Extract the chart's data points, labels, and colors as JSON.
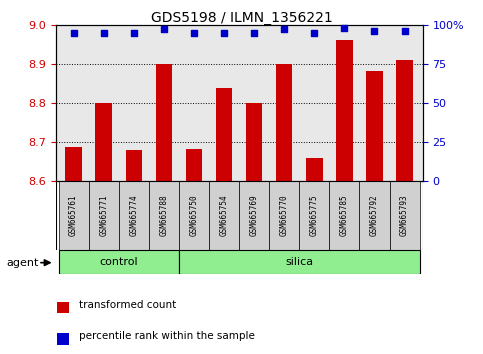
{
  "title": "GDS5198 / ILMN_1356221",
  "samples": [
    "GSM665761",
    "GSM665771",
    "GSM665774",
    "GSM665788",
    "GSM665750",
    "GSM665754",
    "GSM665769",
    "GSM665770",
    "GSM665775",
    "GSM665785",
    "GSM665792",
    "GSM665793"
  ],
  "red_values": [
    8.685,
    8.8,
    8.678,
    8.9,
    8.682,
    8.838,
    8.8,
    8.9,
    8.658,
    8.96,
    8.882,
    8.91
  ],
  "blue_values": [
    95,
    95,
    95,
    97,
    95,
    95,
    95,
    97,
    95,
    98,
    96,
    96
  ],
  "ylim_left": [
    8.6,
    9.0
  ],
  "ylim_right": [
    0,
    100
  ],
  "yticks_left": [
    8.6,
    8.7,
    8.8,
    8.9,
    9.0
  ],
  "yticks_right": [
    0,
    25,
    50,
    75,
    100
  ],
  "ytick_labels_right": [
    "0",
    "25",
    "50",
    "75",
    "100%"
  ],
  "red_color": "#cc0000",
  "blue_color": "#0000cc",
  "bar_width": 0.55,
  "control_count": 4,
  "silica_count": 8,
  "group_colors": [
    "#90ee90",
    "#90ee90"
  ],
  "group_labels": [
    "control",
    "silica"
  ],
  "agent_label": "agent",
  "legend_red": "transformed count",
  "legend_blue": "percentile rank within the sample",
  "plot_bg": "#e8e8e8",
  "grid_color": "#000000",
  "tick_color_left": "#cc0000",
  "tick_color_right": "#0000cc",
  "tick_label_bg": "#d0d0d0"
}
